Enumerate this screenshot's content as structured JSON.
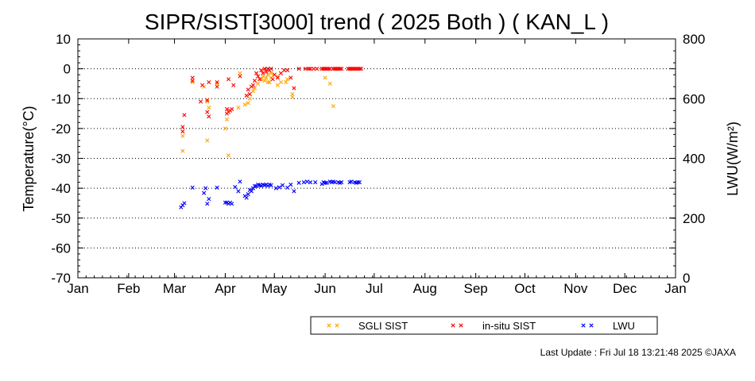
{
  "chart_data": {
    "type": "scatter",
    "title": "SIPR/SIST[3000] trend ( 2025 Both ) ( KAN_L )",
    "ylabel": "Temperature(°C)",
    "y2label": "LWU(W/m²)",
    "ylim": [
      -70,
      10
    ],
    "y2lim": [
      0,
      800
    ],
    "yticks": [
      "10",
      "0",
      "-10",
      "-20",
      "-30",
      "-40",
      "-50",
      "-60",
      "-70"
    ],
    "y2ticks": [
      "800",
      "600",
      "400",
      "200",
      "0"
    ],
    "xlim": [
      1,
      366
    ],
    "xticks": [
      "Jan",
      "Feb",
      "Mar",
      "Apr",
      "May",
      "Jun",
      "Jul",
      "Aug",
      "Sep",
      "Oct",
      "Nov",
      "Dec",
      "Jan"
    ],
    "grid": "horizontal dotted",
    "legend_position": "bottom-right",
    "series": [
      {
        "name": "SGLI SIST",
        "color": "#ffa500",
        "axis": "left",
        "x": [
          65,
          65,
          71,
          78,
          80,
          80,
          81,
          86,
          91,
          92,
          93,
          94,
          99,
          100,
          103,
          105,
          106,
          108,
          109,
          111,
          113,
          114,
          115,
          116,
          117,
          117,
          118,
          119,
          119,
          123,
          123,
          125,
          128,
          129,
          132,
          132,
          152,
          155,
          157
        ],
        "y": [
          -22.5,
          -27.5,
          -4.5,
          -6,
          -24,
          -11,
          -13,
          -5,
          -20,
          -17,
          -29,
          -14,
          -13,
          -1.5,
          -12,
          -11.5,
          -10,
          -7.5,
          -6.5,
          -5,
          -3.5,
          -2.5,
          -4,
          -3,
          -4.5,
          -2,
          -4.5,
          -1.5,
          -3,
          -2.5,
          -5.5,
          -4.5,
          -4.5,
          -3.5,
          -8.5,
          -9.5,
          -3,
          -5,
          -12.5
        ]
      },
      {
        "name": "in-situ SIST",
        "color": "#ff0000",
        "axis": "left",
        "x": [
          65,
          65,
          66,
          71,
          71,
          76,
          77,
          80,
          80,
          81,
          81,
          86,
          86,
          92,
          92,
          93,
          93,
          94,
          95,
          96,
          100,
          104,
          105,
          106,
          107,
          108,
          109,
          110,
          111,
          112,
          113,
          114,
          115,
          116,
          117,
          118,
          119,
          120,
          121,
          123,
          125,
          127,
          129,
          131,
          133,
          136,
          140,
          142,
          143,
          145,
          147,
          150,
          151,
          152,
          153,
          154,
          155,
          157,
          158,
          159,
          160,
          161,
          162,
          166,
          167,
          168,
          169,
          170,
          171,
          172,
          173,
          174
        ],
        "y": [
          -19.5,
          -21,
          -15.5,
          -3,
          -4,
          -11,
          -5.5,
          -10.5,
          -14.5,
          -16,
          -4.5,
          -4.5,
          -6,
          -13.5,
          -15,
          -3.5,
          -14.5,
          -14,
          -13.5,
          -5.5,
          -2.5,
          -9,
          -7,
          -8.5,
          -6,
          -5.5,
          -4,
          -1.5,
          -2.5,
          -3.5,
          -0.5,
          -1.5,
          0,
          -1,
          0,
          -0.5,
          0,
          -3.5,
          -2,
          -3,
          -1.5,
          -0.5,
          -0.5,
          -3,
          -6.5,
          0,
          0,
          0,
          0,
          0,
          0,
          0,
          0,
          0,
          0,
          0,
          0,
          0,
          0,
          0,
          0,
          0,
          0,
          0,
          0,
          0,
          0,
          0,
          0,
          0,
          0,
          0
        ],
        "size": 1
      },
      {
        "name": "LWU",
        "color": "#0000ff",
        "axis": "right",
        "x": [
          64,
          65,
          66,
          71,
          78,
          79,
          80,
          81,
          86,
          91,
          92,
          93,
          94,
          95,
          97,
          99,
          100,
          103,
          104,
          105,
          106,
          107,
          108,
          109,
          110,
          111,
          112,
          113,
          114,
          115,
          116,
          117,
          118,
          119,
          122,
          124,
          126,
          129,
          131,
          133,
          136,
          139,
          141,
          143,
          146,
          150,
          151,
          152,
          153,
          155,
          156,
          157,
          158,
          160,
          161,
          162,
          167,
          168,
          170,
          171,
          172,
          173
        ],
        "y": [
          236,
          243,
          250,
          302,
          284,
          300,
          248,
          264,
          302,
          252,
          252,
          248,
          252,
          248,
          304,
          290,
          322,
          274,
          268,
          280,
          294,
          290,
          300,
          307,
          307,
          312,
          310,
          308,
          312,
          310,
          312,
          308,
          312,
          310,
          300,
          303,
          310,
          302,
          312,
          290,
          318,
          320,
          322,
          320,
          320,
          314,
          320,
          318,
          318,
          322,
          320,
          322,
          320,
          320,
          318,
          320,
          320,
          322,
          320,
          318,
          320,
          320
        ]
      }
    ],
    "footer": "Last Update : Fri Jul 18 13:21:48 2025  ©JAXA"
  }
}
